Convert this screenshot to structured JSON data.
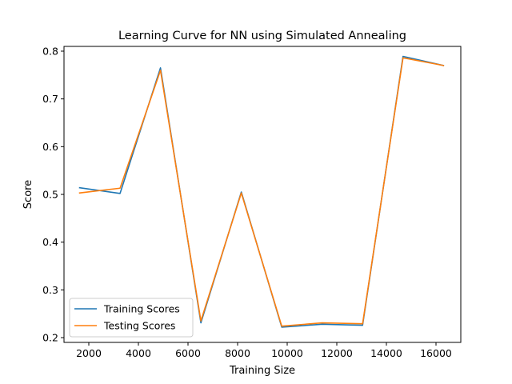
{
  "chart_data": {
    "type": "line",
    "title": "Learning Curve for NN using Simulated Annealing",
    "xlabel": "Training Size",
    "ylabel": "Score",
    "xlim": [
      1000,
      17000
    ],
    "ylim": [
      0.19,
      0.81
    ],
    "xticks": [
      2000,
      4000,
      6000,
      8000,
      10000,
      12000,
      14000,
      16000
    ],
    "yticks": [
      0.2,
      0.3,
      0.4,
      0.5,
      0.6,
      0.7,
      0.8
    ],
    "grid": false,
    "legend_position": "lower-left",
    "x": [
      1630,
      3260,
      4890,
      6520,
      8150,
      9780,
      11410,
      13040,
      14670,
      16300
    ],
    "series": [
      {
        "name": "Training Scores",
        "color": "#1f77b4",
        "values": [
          0.514,
          0.502,
          0.765,
          0.231,
          0.505,
          0.222,
          0.228,
          0.226,
          0.789,
          0.77
        ]
      },
      {
        "name": "Testing Scores",
        "color": "#ff7f0e",
        "values": [
          0.503,
          0.513,
          0.76,
          0.235,
          0.503,
          0.224,
          0.231,
          0.229,
          0.786,
          0.77
        ]
      }
    ]
  }
}
